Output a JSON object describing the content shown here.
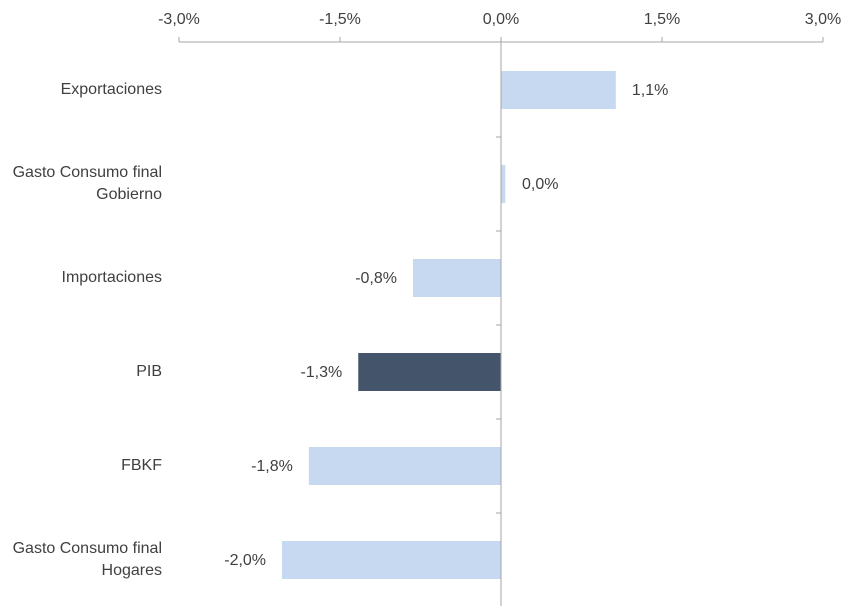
{
  "chart_data": {
    "type": "bar",
    "orientation": "horizontal",
    "categories": [
      "Exportaciones",
      "Gasto Consumo final Gobierno",
      "Importaciones",
      "PIB",
      "FBKF",
      "Gasto Consumo final Hogares"
    ],
    "values": [
      1.07,
      0.04,
      -0.82,
      -1.33,
      -1.79,
      -2.04
    ],
    "value_labels": [
      "1,1%",
      "0,0%",
      "-0,8%",
      "-1,3%",
      "-1,8%",
      "-2,0%"
    ],
    "colors": [
      "#c6d9f1",
      "#c6d9f1",
      "#c6d9f1",
      "#44546a",
      "#c6d9f1",
      "#c6d9f1"
    ],
    "xlim": [
      -3,
      3
    ],
    "xticks": [
      {
        "value": -3,
        "label": "-3,0%"
      },
      {
        "value": -1.5,
        "label": "-1,5%"
      },
      {
        "value": 0,
        "label": "0,0%"
      },
      {
        "value": 1.5,
        "label": "1,5%"
      },
      {
        "value": 3,
        "label": "3,0%"
      }
    ],
    "grid": false
  }
}
